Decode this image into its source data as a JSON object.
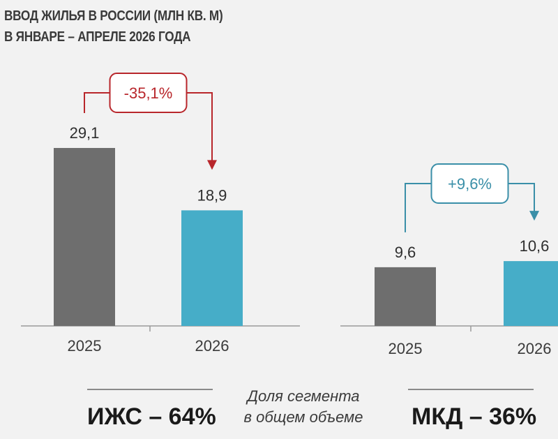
{
  "title": {
    "line1": "ВВОД ЖИЛЬЯ В РОССИИ (МЛН КВ. М)",
    "line2": "В ЯНВАРЕ – АПРЕЛЕ 2026 ГОДА"
  },
  "colors": {
    "bar_2025": "#6e6e6e",
    "bar_2026": "#46adc8",
    "decrease": "#b8262b",
    "increase": "#3a8fa8",
    "axis": "#9a9a9a"
  },
  "chart_data": [
    {
      "type": "bar",
      "segment": "ИЖС",
      "categories": [
        "2025",
        "2026"
      ],
      "values": [
        29.1,
        18.9
      ],
      "value_labels": [
        "29,1",
        "18,9"
      ],
      "change_label": "-35,1%",
      "change_direction": "down",
      "ylim": [
        0,
        35
      ]
    },
    {
      "type": "bar",
      "segment": "МКД",
      "categories": [
        "2025",
        "2026"
      ],
      "values": [
        9.6,
        10.6
      ],
      "value_labels": [
        "9,6",
        "10,6"
      ],
      "change_label": "+9,6%",
      "change_direction": "up",
      "ylim": [
        0,
        35
      ]
    }
  ],
  "footer": {
    "left_label": "ИЖС – 64%",
    "right_label": "МКД – 36%",
    "note_line1": "Доля сегмента",
    "note_line2": "в общем объеме"
  }
}
